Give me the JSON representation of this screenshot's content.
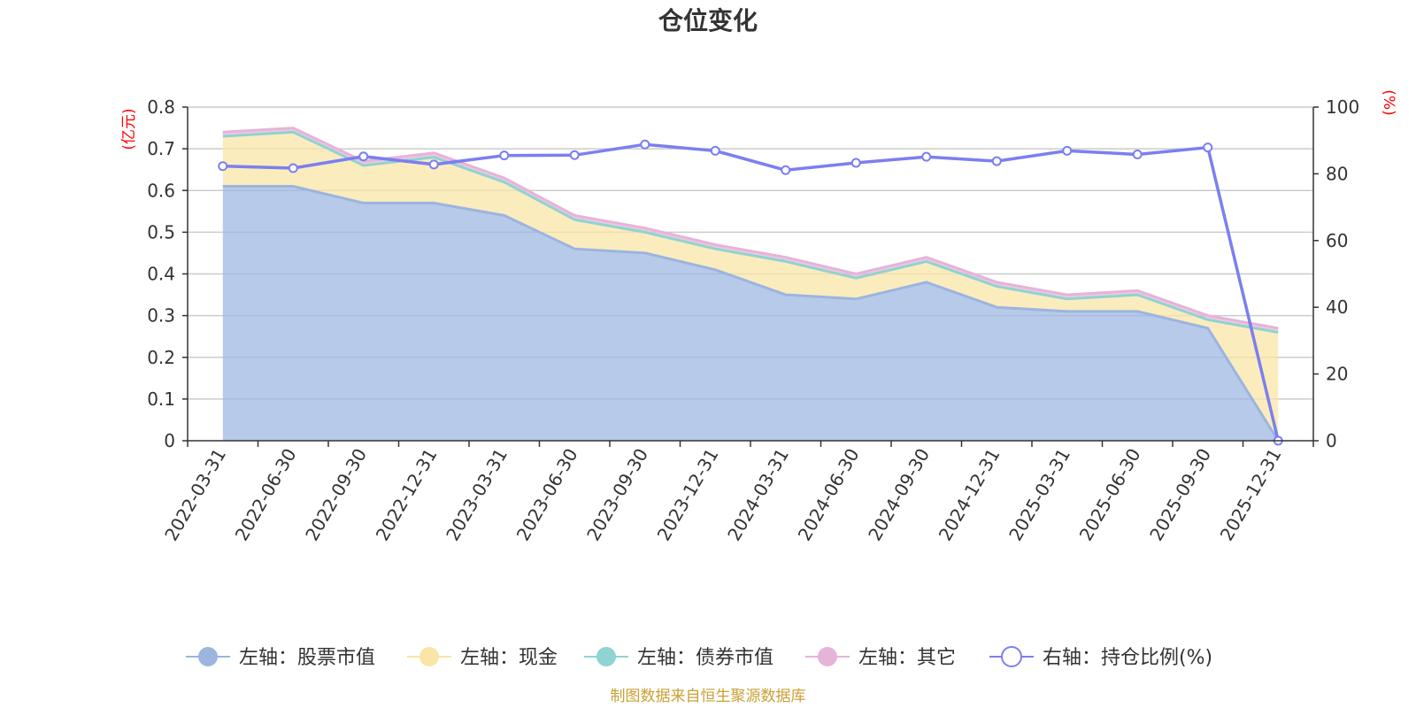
{
  "chart_data": {
    "type": "area",
    "title": "仓位变化",
    "categories": [
      "2022-03-31",
      "2022-06-30",
      "2022-09-30",
      "2022-12-31",
      "2023-03-31",
      "2023-06-30",
      "2023-09-30",
      "2023-12-31",
      "2024-03-31",
      "2024-06-30",
      "2024-09-30",
      "2024-12-31",
      "2025-03-31",
      "2025-06-30",
      "2025-09-30",
      "2025-12-31"
    ],
    "left_axis": {
      "unit": "(亿元)",
      "ylim": [
        0,
        0.8
      ],
      "ticks": [
        "0",
        "0.1",
        "0.2",
        "0.3",
        "0.4",
        "0.5",
        "0.6",
        "0.7",
        "0.8"
      ]
    },
    "right_axis": {
      "unit": "(%)",
      "ylim": [
        0,
        100
      ],
      "ticks": [
        "0",
        "20",
        "40",
        "60",
        "80",
        "100"
      ]
    },
    "series": [
      {
        "name": "左轴：股票市值",
        "axis": "left",
        "stack": true,
        "color": "#9bb5e0",
        "values": [
          0.61,
          0.61,
          0.57,
          0.57,
          0.54,
          0.46,
          0.45,
          0.41,
          0.35,
          0.34,
          0.38,
          0.32,
          0.31,
          0.31,
          0.27,
          0.0
        ]
      },
      {
        "name": "左轴：现金",
        "axis": "left",
        "stack": true,
        "color": "#f9e5a5",
        "values": [
          0.12,
          0.13,
          0.09,
          0.11,
          0.08,
          0.07,
          0.05,
          0.05,
          0.08,
          0.05,
          0.05,
          0.05,
          0.03,
          0.04,
          0.02,
          0.26
        ]
      },
      {
        "name": "左轴：债券市值",
        "axis": "left",
        "stack": true,
        "color": "#8fd3d3",
        "values": [
          0,
          0,
          0,
          0,
          0,
          0,
          0,
          0,
          0,
          0,
          0,
          0,
          0,
          0,
          0,
          0
        ]
      },
      {
        "name": "左轴：其它",
        "axis": "left",
        "stack": true,
        "color": "#e6b4d8",
        "values": [
          0.01,
          0.01,
          0.01,
          0.01,
          0.01,
          0.01,
          0.01,
          0.01,
          0.01,
          0.01,
          0.01,
          0.01,
          0.01,
          0.01,
          0.01,
          0.01
        ]
      },
      {
        "name": "右轴：持仓比例(%)",
        "axis": "right",
        "stack": false,
        "color": "#7b7ff0",
        "values": [
          82.3,
          81.7,
          85.2,
          82.8,
          85.5,
          85.6,
          88.8,
          86.9,
          81.1,
          83.3,
          85.1,
          83.8,
          86.9,
          85.8,
          87.9,
          0.0
        ]
      }
    ],
    "legend_position": "bottom"
  },
  "source_note": "制图数据来自恒生聚源数据库"
}
